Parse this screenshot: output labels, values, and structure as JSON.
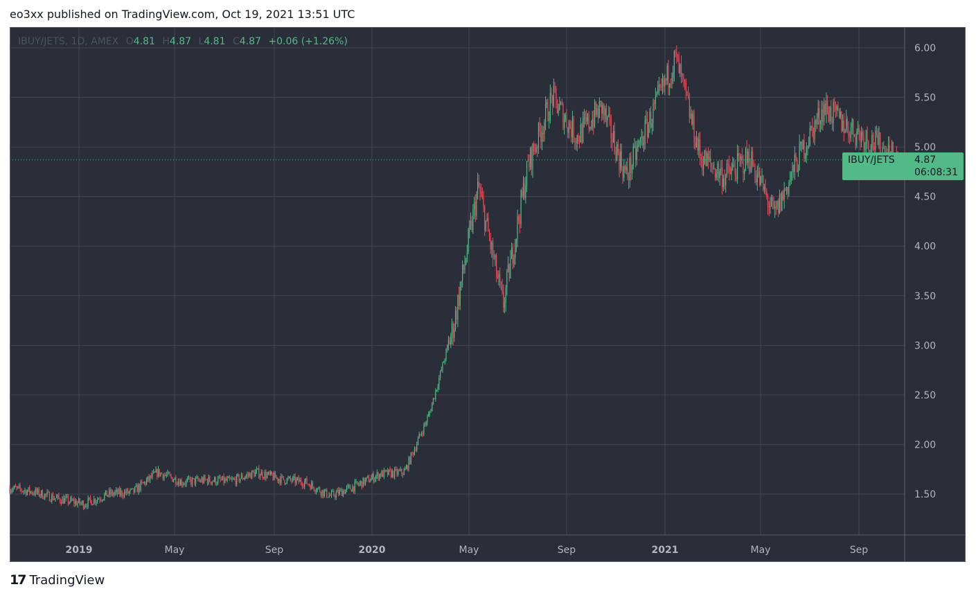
{
  "header": {
    "published": "eo3xx published on TradingView.com, Oct 19, 2021 13:51 UTC"
  },
  "legend": {
    "symbol": "IBUY/JETS, 1D, AMEX",
    "o_label": "O",
    "o": "4.81",
    "h_label": "H",
    "h": "4.87",
    "l_label": "L",
    "l": "4.81",
    "c_label": "C",
    "c": "4.87",
    "change": "+0.06 (+1.26%)"
  },
  "price_tag": {
    "symbol": "IBUY/JETS",
    "value": "4.87",
    "countdown": "06:08:31"
  },
  "footer": {
    "brand": "TradingView",
    "logo_icon": "tradingview-logo-icon"
  },
  "colors": {
    "background": "#2a2e39",
    "grid": "#434651",
    "up": "#53b987",
    "down": "#eb4d5c",
    "axis_text": "#b2b5be"
  },
  "chart_data": {
    "type": "candlestick",
    "title": "IBUY/JETS, 1D, AMEX",
    "ylim": [
      1.1,
      6.2
    ],
    "y_ticks": [
      "6.00",
      "5.50",
      "5.00",
      "4.50",
      "4.00",
      "3.50",
      "3.00",
      "2.50",
      "2.00",
      "1.50"
    ],
    "x_ticks": [
      {
        "label": "2019",
        "bold": true
      },
      {
        "label": "May",
        "bold": false
      },
      {
        "label": "Sep",
        "bold": false
      },
      {
        "label": "2020",
        "bold": true
      },
      {
        "label": "May",
        "bold": false
      },
      {
        "label": "Sep",
        "bold": false
      },
      {
        "label": "2021",
        "bold": true
      },
      {
        "label": "May",
        "bold": false
      },
      {
        "label": "Sep",
        "bold": false
      }
    ],
    "last_price": 4.87,
    "grid": true,
    "series": [
      {
        "close_path": [
          [
            "2018-10",
            1.56
          ],
          [
            "2018-11",
            1.52
          ],
          [
            "2018-12",
            1.45
          ],
          [
            "2019-01",
            1.4
          ],
          [
            "2019-02",
            1.5
          ],
          [
            "2019-03",
            1.52
          ],
          [
            "2019-04",
            1.72
          ],
          [
            "2019-05",
            1.62
          ],
          [
            "2019-06",
            1.64
          ],
          [
            "2019-07",
            1.63
          ],
          [
            "2019-08",
            1.72
          ],
          [
            "2019-09",
            1.65
          ],
          [
            "2019-10",
            1.62
          ],
          [
            "2019-11",
            1.48
          ],
          [
            "2019-12",
            1.58
          ],
          [
            "2020-01",
            1.7
          ],
          [
            "2020-02",
            1.72
          ],
          [
            "2020-03",
            2.3
          ],
          [
            "2020-04",
            3.2
          ],
          [
            "2020-05",
            4.6
          ],
          [
            "2020-06",
            3.4
          ],
          [
            "2020-07",
            4.8
          ],
          [
            "2020-08",
            5.5
          ],
          [
            "2020-09",
            5.1
          ],
          [
            "2020-10",
            5.4
          ],
          [
            "2020-11",
            4.7
          ],
          [
            "2020-12",
            5.3
          ],
          [
            "2021-01",
            5.9
          ],
          [
            "2021-02",
            4.9
          ],
          [
            "2021-03",
            4.7
          ],
          [
            "2021-04",
            4.9
          ],
          [
            "2021-05",
            4.3
          ],
          [
            "2021-06",
            4.9
          ],
          [
            "2021-07",
            5.4
          ],
          [
            "2021-08",
            5.2
          ],
          [
            "2021-09",
            5.05
          ],
          [
            "2021-10",
            4.87
          ]
        ]
      }
    ]
  }
}
